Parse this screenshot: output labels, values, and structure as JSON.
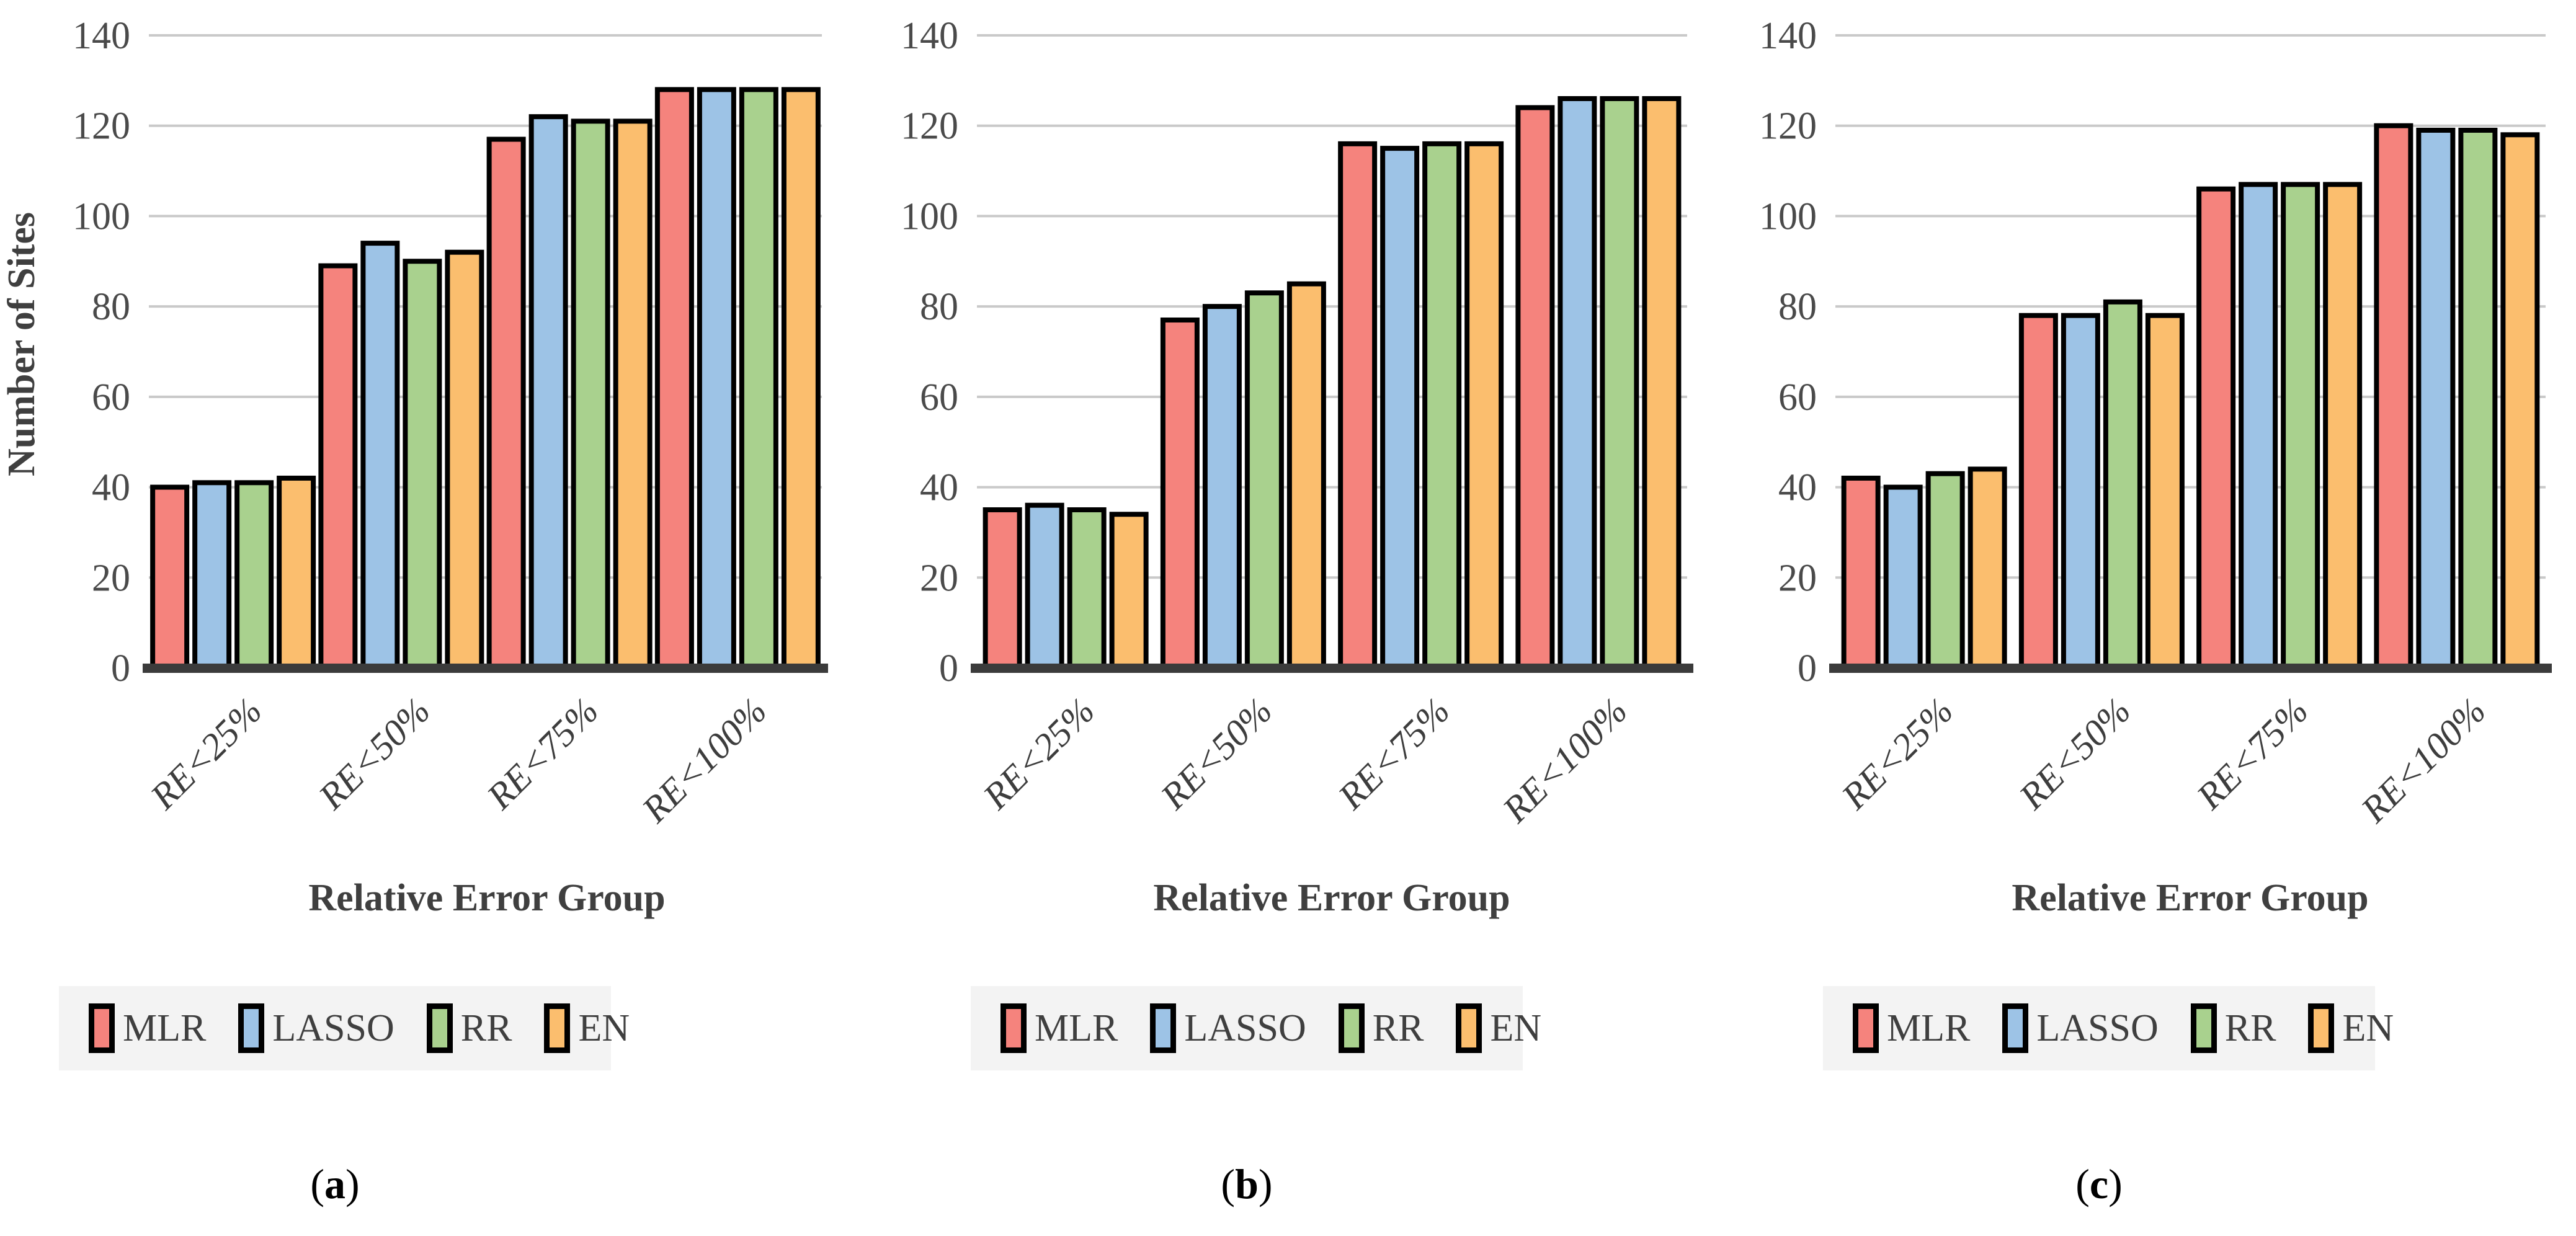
{
  "figure": {
    "y_axis_title": "Number of Sites",
    "x_axis_title": "Relative Error Group",
    "caption_open": "(",
    "caption_close": ")",
    "colors": {
      "mlr": "#F5837D",
      "lasso": "#9DC3E6",
      "rr": "#A9D18E",
      "en": "#FBBE6E",
      "bar_border": "#000000",
      "gridline": "#C9C9C9",
      "axis_baseline": "#3B3B3B",
      "text": "#3F3F3F",
      "legend_background": "#F3F3F3"
    }
  },
  "legend": {
    "items": [
      {
        "label": "MLR",
        "color": "#F5837D"
      },
      {
        "label": "LASSO",
        "color": "#9DC3E6"
      },
      {
        "label": "RR",
        "color": "#A9D18E"
      },
      {
        "label": "EN",
        "color": "#FBBE6E"
      }
    ]
  },
  "chart_data": [
    {
      "type": "bar",
      "caption_letter": "a",
      "title": "",
      "xlabel": "Relative Error Group",
      "ylabel": "Number of Sites",
      "ylim": [
        0,
        140
      ],
      "ytick_step": 20,
      "grid": true,
      "legend_position": "bottom",
      "categories": [
        "RE<25%",
        "RE<50%",
        "RE<75%",
        "RE<100%"
      ],
      "series": [
        {
          "name": "MLR",
          "color": "#F5837D",
          "values": [
            40,
            89,
            117,
            128
          ]
        },
        {
          "name": "LASSO",
          "color": "#9DC3E6",
          "values": [
            41,
            94,
            122,
            128
          ]
        },
        {
          "name": "RR",
          "color": "#A9D18E",
          "values": [
            41,
            90,
            121,
            128
          ]
        },
        {
          "name": "EN",
          "color": "#FBBE6E",
          "values": [
            42,
            92,
            121,
            128
          ]
        }
      ]
    },
    {
      "type": "bar",
      "caption_letter": "b",
      "title": "",
      "xlabel": "Relative Error Group",
      "ylabel": "",
      "ylim": [
        0,
        140
      ],
      "ytick_step": 20,
      "grid": true,
      "legend_position": "bottom",
      "categories": [
        "RE<25%",
        "RE<50%",
        "RE<75%",
        "RE<100%"
      ],
      "series": [
        {
          "name": "MLR",
          "color": "#F5837D",
          "values": [
            35,
            77,
            116,
            124
          ]
        },
        {
          "name": "LASSO",
          "color": "#9DC3E6",
          "values": [
            36,
            80,
            115,
            126
          ]
        },
        {
          "name": "RR",
          "color": "#A9D18E",
          "values": [
            35,
            83,
            116,
            126
          ]
        },
        {
          "name": "EN",
          "color": "#FBBE6E",
          "values": [
            34,
            85,
            116,
            126
          ]
        }
      ]
    },
    {
      "type": "bar",
      "caption_letter": "c",
      "title": "",
      "xlabel": "Relative Error Group",
      "ylabel": "",
      "ylim": [
        0,
        140
      ],
      "ytick_step": 20,
      "grid": true,
      "legend_position": "bottom",
      "categories": [
        "RE<25%",
        "RE<50%",
        "RE<75%",
        "RE<100%"
      ],
      "series": [
        {
          "name": "MLR",
          "color": "#F5837D",
          "values": [
            42,
            78,
            106,
            120
          ]
        },
        {
          "name": "LASSO",
          "color": "#9DC3E6",
          "values": [
            40,
            78,
            107,
            119
          ]
        },
        {
          "name": "RR",
          "color": "#A9D18E",
          "values": [
            43,
            81,
            107,
            119
          ]
        },
        {
          "name": "EN",
          "color": "#FBBE6E",
          "values": [
            44,
            78,
            107,
            118
          ]
        }
      ]
    }
  ]
}
